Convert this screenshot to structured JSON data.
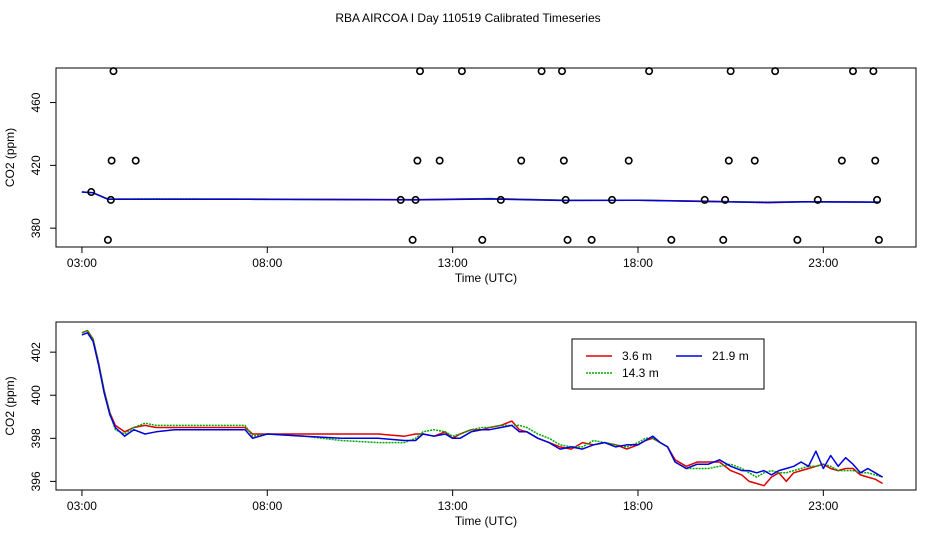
{
  "title": "RBA AIRCOA I  Day 110519  Calibrated Timeseries",
  "chart_data": [
    {
      "type": "scatter",
      "xlabel": "Time (UTC)",
      "ylabel": "CO2 (ppm)",
      "xlim": [
        2.3,
        25.5
      ],
      "ylim": [
        368,
        482
      ],
      "xticks": [
        3,
        8,
        13,
        18,
        23
      ],
      "xtick_labels": [
        "03:00",
        "08:00",
        "13:00",
        "18:00",
        "23:00"
      ],
      "yticks": [
        380,
        420,
        460
      ],
      "ytick_labels": [
        "380",
        "420",
        "460"
      ],
      "grid": false,
      "points": [
        [
          3.25,
          403
        ],
        [
          3.85,
          480
        ],
        [
          3.8,
          423
        ],
        [
          3.78,
          398
        ],
        [
          3.7,
          372.5
        ],
        [
          4.45,
          423
        ],
        [
          11.6,
          398
        ],
        [
          11.92,
          372.5
        ],
        [
          12.0,
          398
        ],
        [
          12.05,
          423
        ],
        [
          12.12,
          480
        ],
        [
          12.65,
          423
        ],
        [
          13.25,
          480
        ],
        [
          13.8,
          372.5
        ],
        [
          14.3,
          398
        ],
        [
          14.85,
          423
        ],
        [
          15.4,
          480
        ],
        [
          15.95,
          480
        ],
        [
          16.0,
          423
        ],
        [
          16.05,
          398
        ],
        [
          16.1,
          372.5
        ],
        [
          16.75,
          372.5
        ],
        [
          17.3,
          398
        ],
        [
          17.75,
          423
        ],
        [
          18.3,
          480
        ],
        [
          18.9,
          372.5
        ],
        [
          19.8,
          398
        ],
        [
          20.3,
          372.5
        ],
        [
          20.35,
          398
        ],
        [
          20.45,
          423
        ],
        [
          20.5,
          480
        ],
        [
          21.15,
          423
        ],
        [
          21.7,
          480
        ],
        [
          22.3,
          372.5
        ],
        [
          22.85,
          398
        ],
        [
          23.5,
          423
        ],
        [
          23.8,
          480
        ],
        [
          24.35,
          480
        ],
        [
          24.4,
          423
        ],
        [
          24.45,
          398
        ],
        [
          24.5,
          372.5
        ]
      ],
      "series": [
        {
          "name": "3.6 m",
          "color": "#dd0000",
          "x": [
            3.0,
            3.3,
            3.7,
            5.0,
            7.5,
            12.0,
            14.0,
            16.0,
            18.0,
            20.0,
            21.5,
            22.5,
            24.5
          ],
          "y": [
            403,
            402.5,
            398.5,
            398.5,
            398.5,
            398.2,
            398.8,
            397.8,
            397.8,
            397.2,
            396.2,
            396.8,
            396.5
          ]
        },
        {
          "name": "14.3 m",
          "color": "#00aa00",
          "x": [
            3.0,
            3.3,
            3.7,
            5.0,
            7.5,
            12.0,
            14.0,
            16.0,
            18.0,
            20.0,
            21.5,
            22.5,
            24.5
          ],
          "y": [
            403,
            402.5,
            398.5,
            398.7,
            398.5,
            398.0,
            398.8,
            397.8,
            397.8,
            397.0,
            396.6,
            396.7,
            396.6
          ]
        },
        {
          "name": "21.9 m",
          "color": "#0000dd",
          "x": [
            3.0,
            3.3,
            3.7,
            5.0,
            7.5,
            12.0,
            14.0,
            16.0,
            18.0,
            20.0,
            21.5,
            22.5,
            24.5
          ],
          "y": [
            403,
            402.5,
            398.4,
            398.4,
            398.4,
            398.0,
            398.6,
            397.6,
            397.8,
            396.9,
            396.4,
            396.8,
            396.6
          ]
        }
      ]
    },
    {
      "type": "line",
      "xlabel": "Time (UTC)",
      "ylabel": "CO2 (ppm)",
      "xlim": [
        2.3,
        25.5
      ],
      "ylim": [
        395.6,
        403.4
      ],
      "xticks": [
        3,
        8,
        13,
        18,
        23
      ],
      "xtick_labels": [
        "03:00",
        "08:00",
        "13:00",
        "18:00",
        "23:00"
      ],
      "yticks": [
        396,
        398,
        400,
        402
      ],
      "ytick_labels": [
        "396",
        "398",
        "400",
        "402"
      ],
      "grid": false,
      "legend": {
        "placement": "top-right"
      },
      "series": [
        {
          "name": "3.6 m",
          "color": "#dd0000",
          "x": [
            3.0,
            3.15,
            3.3,
            3.45,
            3.6,
            3.75,
            3.9,
            4.15,
            4.4,
            4.7,
            5.0,
            5.5,
            6.0,
            7.0,
            7.4,
            7.6,
            8.0,
            9.0,
            10.0,
            11.0,
            11.7,
            12.0,
            12.2,
            12.5,
            12.8,
            13.0,
            13.2,
            13.5,
            13.8,
            14.0,
            14.3,
            14.6,
            14.8,
            15.0,
            15.3,
            15.6,
            15.9,
            16.2,
            16.5,
            16.8,
            17.1,
            17.4,
            17.7,
            18.0,
            18.2,
            18.4,
            18.6,
            18.8,
            19.0,
            19.3,
            19.6,
            19.9,
            20.2,
            20.5,
            20.8,
            21.0,
            21.2,
            21.4,
            21.6,
            21.8,
            22.0,
            22.2,
            22.4,
            22.6,
            22.8,
            23.0,
            23.2,
            23.4,
            23.6,
            23.8,
            24.0,
            24.2,
            24.4,
            24.6
          ],
          "y": [
            402.9,
            403.0,
            402.6,
            401.5,
            400.2,
            399.2,
            398.6,
            398.3,
            398.5,
            398.6,
            398.5,
            398.5,
            398.5,
            398.5,
            398.5,
            398.2,
            398.2,
            398.2,
            398.2,
            398.2,
            398.1,
            398.2,
            398.2,
            398.1,
            398.3,
            398.0,
            398.2,
            398.4,
            398.4,
            398.5,
            398.6,
            398.8,
            398.4,
            398.3,
            398.0,
            397.8,
            397.6,
            397.5,
            397.8,
            397.7,
            397.8,
            397.7,
            397.5,
            397.7,
            397.9,
            398.0,
            397.8,
            397.6,
            397.0,
            396.7,
            396.9,
            396.9,
            396.9,
            396.5,
            396.3,
            396.0,
            395.9,
            395.8,
            396.2,
            396.4,
            396.0,
            396.4,
            396.5,
            396.6,
            396.7,
            396.8,
            396.6,
            396.5,
            396.6,
            396.6,
            396.3,
            396.2,
            396.1,
            395.9
          ]
        },
        {
          "name": "14.3 m",
          "color": "#00aa00",
          "x": [
            3.0,
            3.15,
            3.3,
            3.45,
            3.6,
            3.75,
            3.9,
            4.15,
            4.4,
            4.7,
            5.0,
            5.5,
            6.0,
            7.0,
            7.4,
            7.6,
            8.0,
            9.0,
            10.0,
            11.0,
            11.7,
            12.0,
            12.2,
            12.5,
            12.8,
            13.0,
            13.2,
            13.5,
            13.8,
            14.0,
            14.3,
            14.6,
            14.8,
            15.0,
            15.3,
            15.6,
            15.9,
            16.2,
            16.5,
            16.8,
            17.1,
            17.4,
            17.7,
            18.0,
            18.2,
            18.4,
            18.6,
            18.8,
            19.0,
            19.3,
            19.6,
            19.9,
            20.2,
            20.5,
            20.8,
            21.0,
            21.2,
            21.4,
            21.6,
            21.8,
            22.0,
            22.2,
            22.4,
            22.6,
            22.8,
            23.0,
            23.2,
            23.4,
            23.6,
            23.8,
            24.0,
            24.2,
            24.4,
            24.6
          ],
          "y": [
            402.9,
            403.0,
            402.6,
            401.5,
            400.2,
            399.2,
            398.4,
            398.2,
            398.5,
            398.7,
            398.6,
            398.6,
            398.6,
            398.6,
            398.6,
            398.1,
            398.2,
            398.1,
            397.9,
            397.8,
            397.8,
            398.0,
            398.3,
            398.4,
            398.3,
            398.1,
            398.2,
            398.4,
            398.5,
            398.5,
            398.6,
            398.6,
            398.6,
            398.5,
            398.2,
            398.0,
            397.7,
            397.6,
            397.6,
            397.9,
            397.8,
            397.7,
            397.6,
            397.8,
            398.0,
            398.0,
            397.8,
            397.6,
            396.9,
            396.6,
            396.6,
            396.6,
            396.7,
            396.8,
            396.6,
            396.4,
            396.2,
            396.4,
            396.5,
            396.4,
            396.4,
            396.5,
            396.6,
            396.7,
            396.7,
            396.8,
            396.7,
            396.5,
            396.5,
            396.5,
            396.4,
            396.4,
            396.3,
            396.2
          ]
        },
        {
          "name": "21.9 m",
          "color": "#0000dd",
          "x": [
            3.0,
            3.15,
            3.3,
            3.45,
            3.6,
            3.75,
            3.9,
            4.15,
            4.4,
            4.7,
            5.0,
            5.5,
            6.0,
            7.0,
            7.4,
            7.6,
            8.0,
            9.0,
            10.0,
            11.0,
            11.7,
            12.0,
            12.2,
            12.5,
            12.8,
            13.0,
            13.2,
            13.5,
            13.8,
            14.0,
            14.3,
            14.6,
            14.8,
            15.0,
            15.3,
            15.6,
            15.9,
            16.2,
            16.5,
            16.8,
            17.1,
            17.4,
            17.7,
            18.0,
            18.2,
            18.4,
            18.6,
            18.8,
            19.0,
            19.3,
            19.6,
            19.9,
            20.2,
            20.5,
            20.8,
            21.0,
            21.2,
            21.4,
            21.6,
            21.8,
            22.0,
            22.2,
            22.4,
            22.6,
            22.8,
            23.0,
            23.2,
            23.4,
            23.6,
            23.8,
            24.0,
            24.2,
            24.4,
            24.6
          ],
          "y": [
            402.8,
            402.9,
            402.5,
            401.4,
            400.1,
            399.1,
            398.5,
            398.1,
            398.4,
            398.2,
            398.3,
            398.4,
            398.4,
            398.4,
            398.4,
            398.0,
            398.2,
            398.1,
            398.0,
            398.0,
            397.9,
            397.9,
            398.2,
            398.1,
            398.2,
            398.0,
            398.0,
            398.3,
            398.4,
            398.4,
            398.5,
            398.6,
            398.3,
            398.3,
            398.0,
            397.8,
            397.5,
            397.6,
            397.5,
            397.7,
            397.8,
            397.6,
            397.7,
            397.7,
            397.9,
            398.1,
            397.8,
            397.6,
            396.9,
            396.6,
            396.8,
            396.8,
            397.0,
            396.7,
            396.5,
            396.5,
            396.4,
            396.5,
            396.3,
            396.5,
            396.6,
            396.7,
            396.9,
            396.7,
            397.4,
            396.6,
            397.2,
            396.7,
            397.1,
            396.8,
            396.4,
            396.6,
            396.4,
            396.2
          ]
        }
      ]
    }
  ]
}
